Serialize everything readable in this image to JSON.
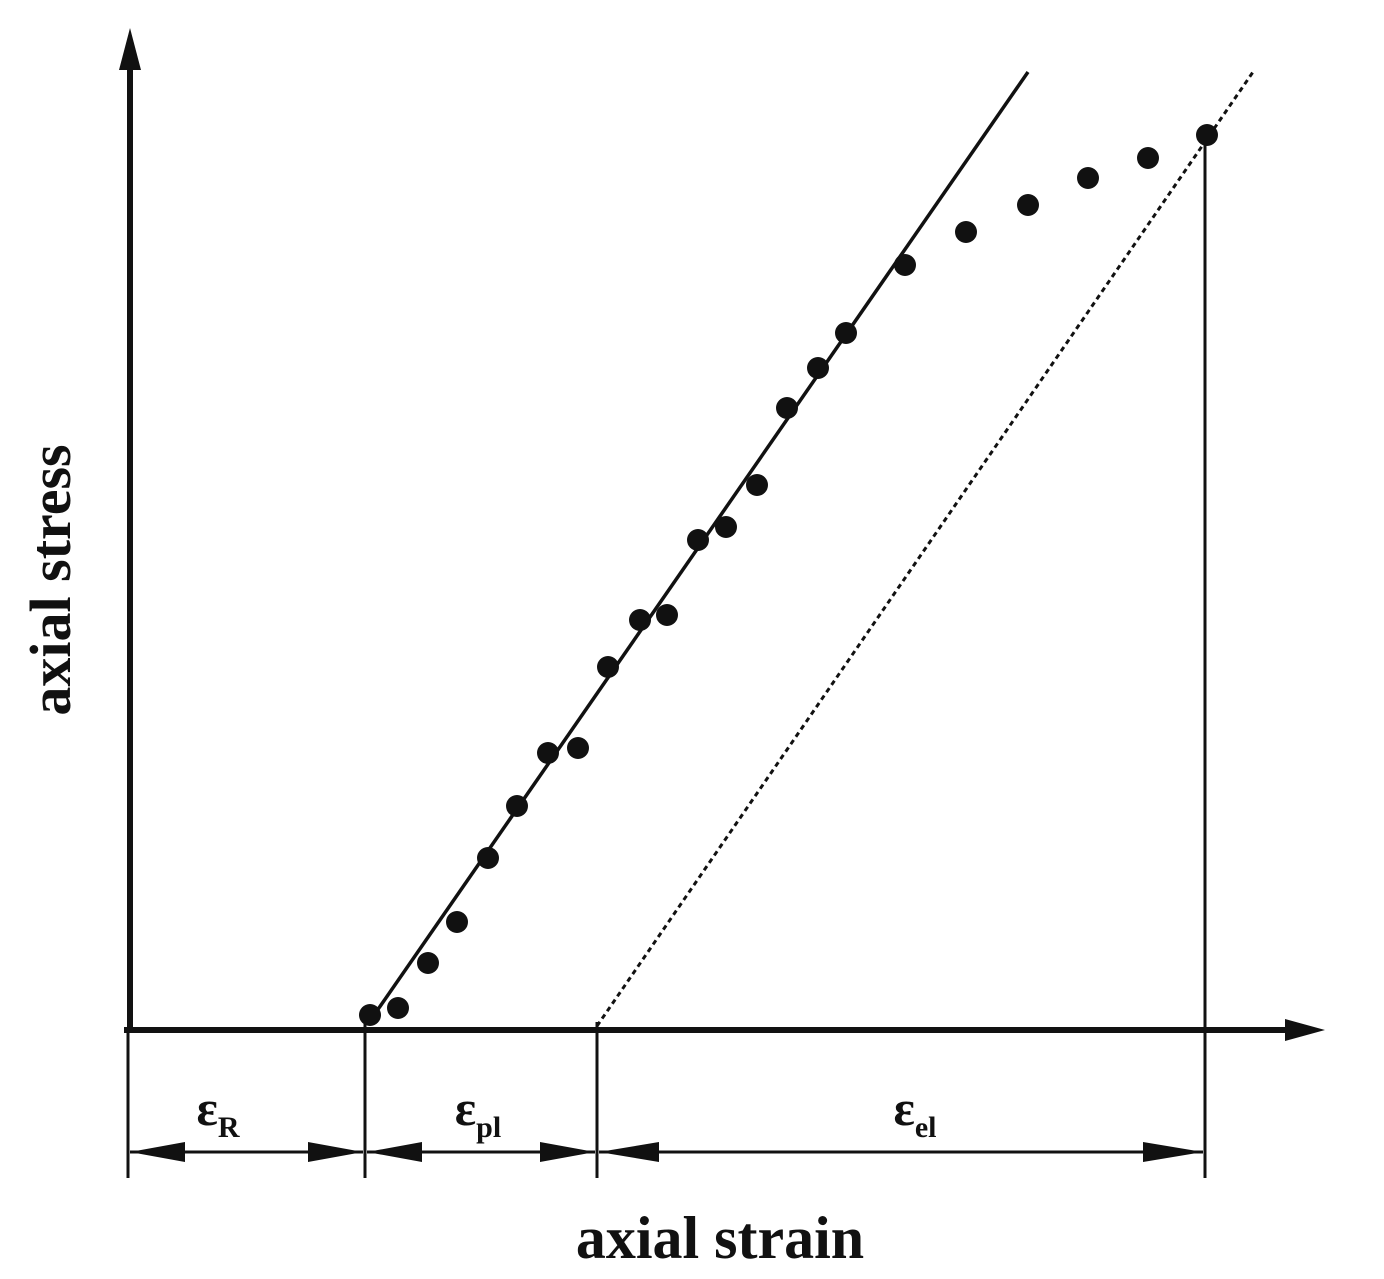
{
  "axes": {
    "y_label": "axial stress",
    "x_label": "axial strain"
  },
  "segments": [
    {
      "symbol": "ε",
      "subscript": "R"
    },
    {
      "symbol": "ε",
      "subscript": "pl"
    },
    {
      "symbol": "ε",
      "subscript": "el"
    }
  ]
}
